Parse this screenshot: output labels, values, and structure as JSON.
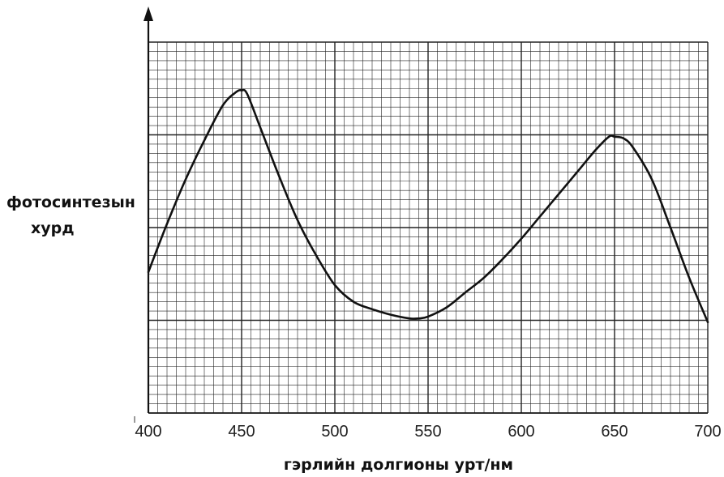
{
  "chart_data": {
    "type": "line",
    "title": "",
    "ylabel_lines": [
      "фотосинтезын",
      "хурд"
    ],
    "xlabel": "гэрлийн долгионы урт/нм",
    "xlim": [
      400,
      700
    ],
    "ylim": [
      0,
      20
    ],
    "x_ticks": [
      400,
      450,
      500,
      550,
      600,
      650,
      700
    ],
    "grid": true,
    "series": [
      {
        "x": [
          400,
          410,
          420,
          430,
          440,
          447,
          450,
          453,
          460,
          470,
          480,
          490,
          500,
          510,
          520,
          530,
          540,
          545,
          550,
          560,
          570,
          580,
          590,
          600,
          610,
          620,
          630,
          640,
          647,
          650,
          655,
          660,
          670,
          680,
          690,
          700
        ],
        "y": [
          7.6,
          10.2,
          12.6,
          14.7,
          16.6,
          17.3,
          17.4,
          17.2,
          15.4,
          12.8,
          10.4,
          8.5,
          6.9,
          6.0,
          5.6,
          5.3,
          5.1,
          5.1,
          5.2,
          5.7,
          6.5,
          7.3,
          8.3,
          9.4,
          10.6,
          11.8,
          13.0,
          14.2,
          14.9,
          14.9,
          14.8,
          14.3,
          12.6,
          10.0,
          7.3,
          4.9
        ]
      }
    ]
  }
}
